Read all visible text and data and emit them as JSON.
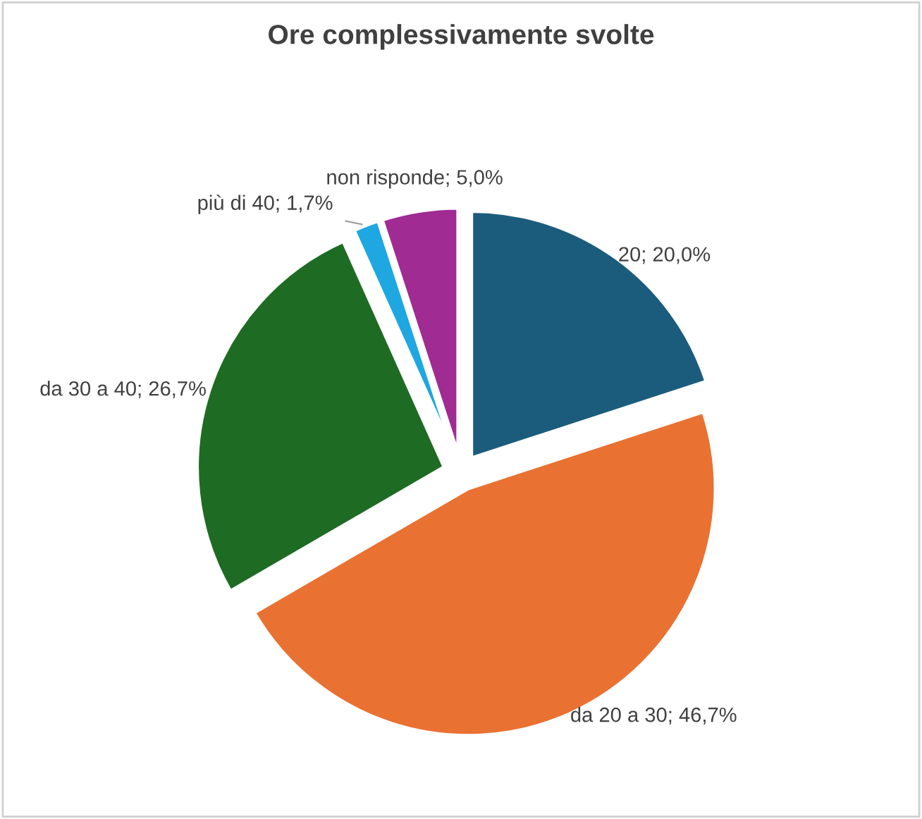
{
  "chart_data": {
    "type": "pie",
    "title": "Ore complessivamente svolte",
    "categories": [
      "20",
      "da 20 a 30",
      "da 30 a 40",
      "più di 40",
      "non risponde"
    ],
    "values": [
      20.0,
      46.7,
      26.7,
      1.7,
      5.0
    ],
    "value_labels": [
      "20,0%",
      "46,7%",
      "26,7%",
      "1,7%",
      "5,0%"
    ],
    "colors": [
      "#1b5c7d",
      "#e97132",
      "#1e6b24",
      "#1ea7e1",
      "#a02b93"
    ],
    "legend": false
  }
}
